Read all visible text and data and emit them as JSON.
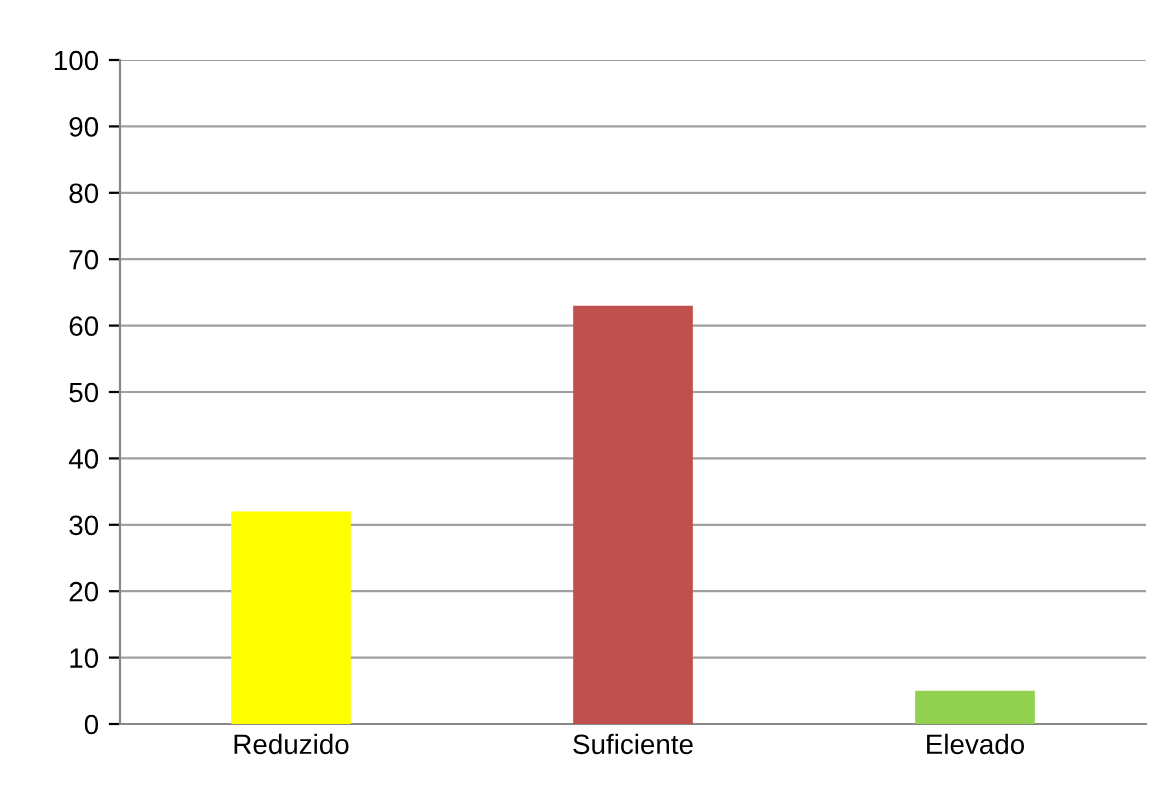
{
  "chart_data": {
    "type": "bar",
    "categories": [
      "Reduzido",
      "Suficiente",
      "Elevado"
    ],
    "values": [
      32,
      63,
      5
    ],
    "colors": [
      "#ffff00",
      "#c0504d",
      "#92d050"
    ],
    "ylim": [
      0,
      100
    ],
    "yticks": [
      0,
      10,
      20,
      30,
      40,
      50,
      60,
      70,
      80,
      90,
      100
    ],
    "grid": "y",
    "legend": false
  }
}
